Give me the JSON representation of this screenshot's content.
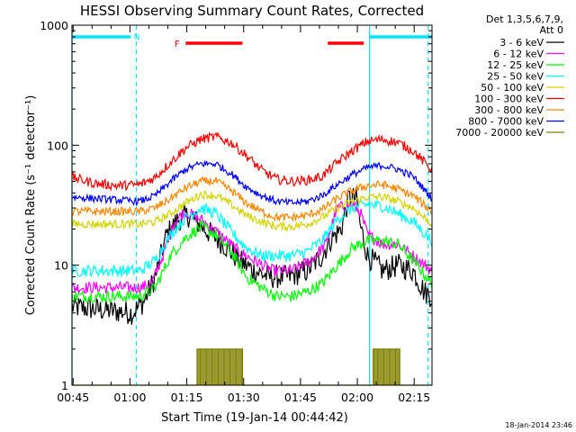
{
  "chart_data": {
    "type": "line",
    "title": "HESSI Observing Summary Count Rates, Corrected",
    "xlabel": "Start Time (19-Jan-14 00:44:42)",
    "ylabel": "Corrected Count Rate (s⁻¹ detector⁻¹)",
    "x_unit": "minutes after 00:44:42",
    "xlim": [
      0,
      95
    ],
    "ylim": [
      1,
      1000
    ],
    "yscale": "log",
    "x_ticks": [
      {
        "at": 0.3,
        "label": "00:45"
      },
      {
        "at": 15.3,
        "label": "01:00"
      },
      {
        "at": 30.3,
        "label": "01:15"
      },
      {
        "at": 45.3,
        "label": "01:30"
      },
      {
        "at": 60.3,
        "label": "01:45"
      },
      {
        "at": 75.3,
        "label": "02:00"
      },
      {
        "at": 90.3,
        "label": "02:15"
      }
    ],
    "y_ticks": [
      {
        "at": 1,
        "label": "1"
      },
      {
        "at": 10,
        "label": "10"
      },
      {
        "at": 100,
        "label": "100"
      },
      {
        "at": 1000,
        "label": "1000"
      }
    ],
    "legend_header": [
      "Det 1,3,5,6,7,9,",
      "Att 0"
    ],
    "legend_position": "right",
    "series": [
      {
        "name": "3 - 6 keV",
        "color": "#000000",
        "noise": 0.1,
        "points": [
          [
            0,
            4.5
          ],
          [
            16,
            4
          ],
          [
            19,
            5
          ],
          [
            22,
            8
          ],
          [
            25,
            18
          ],
          [
            28,
            24
          ],
          [
            31,
            26
          ],
          [
            35,
            20
          ],
          [
            40,
            15
          ],
          [
            44,
            11
          ],
          [
            48,
            9
          ],
          [
            52,
            8
          ],
          [
            57,
            8
          ],
          [
            62,
            9
          ],
          [
            66,
            12
          ],
          [
            68,
            16
          ],
          [
            71,
            20
          ],
          [
            73,
            36
          ],
          [
            75,
            36
          ],
          [
            76,
            22
          ],
          [
            78,
            12
          ],
          [
            82,
            9
          ],
          [
            86,
            10
          ],
          [
            90,
            9
          ],
          [
            93,
            6
          ],
          [
            95,
            5.5
          ]
        ]
      },
      {
        "name": "6 - 12 keV",
        "color": "#ff00ff",
        "noise": 0.05,
        "points": [
          [
            0,
            6.5
          ],
          [
            18,
            6.5
          ],
          [
            21,
            7
          ],
          [
            24,
            12
          ],
          [
            27,
            23
          ],
          [
            30,
            28
          ],
          [
            34,
            24
          ],
          [
            39,
            18
          ],
          [
            44,
            13
          ],
          [
            48,
            11
          ],
          [
            53,
            9
          ],
          [
            58,
            9
          ],
          [
            63,
            11
          ],
          [
            67,
            15
          ],
          [
            70,
            30
          ],
          [
            74,
            32
          ],
          [
            76,
            28
          ],
          [
            78,
            18
          ],
          [
            82,
            15
          ],
          [
            86,
            15
          ],
          [
            90,
            12
          ],
          [
            95,
            9
          ]
        ]
      },
      {
        "name": "12 - 25 keV",
        "color": "#00ff00",
        "noise": 0.05,
        "points": [
          [
            0,
            5.5
          ],
          [
            18,
            5.5
          ],
          [
            22,
            6.5
          ],
          [
            26,
            12
          ],
          [
            30,
            17
          ],
          [
            34,
            21
          ],
          [
            38,
            18
          ],
          [
            42,
            13
          ],
          [
            46,
            8
          ],
          [
            50,
            6.5
          ],
          [
            54,
            5.5
          ],
          [
            58,
            5.5
          ],
          [
            62,
            6
          ],
          [
            66,
            7
          ],
          [
            70,
            10
          ],
          [
            74,
            14
          ],
          [
            78,
            16
          ],
          [
            82,
            16
          ],
          [
            86,
            15
          ],
          [
            90,
            11
          ],
          [
            95,
            7
          ]
        ]
      },
      {
        "name": "25 - 50 keV",
        "color": "#00ffff",
        "noise": 0.05,
        "points": [
          [
            0,
            9
          ],
          [
            18,
            9
          ],
          [
            22,
            11
          ],
          [
            26,
            18
          ],
          [
            30,
            25
          ],
          [
            34,
            30
          ],
          [
            38,
            27
          ],
          [
            42,
            19
          ],
          [
            46,
            14
          ],
          [
            50,
            12
          ],
          [
            54,
            12
          ],
          [
            58,
            12
          ],
          [
            62,
            13
          ],
          [
            66,
            16
          ],
          [
            70,
            24
          ],
          [
            74,
            30
          ],
          [
            78,
            32
          ],
          [
            82,
            31
          ],
          [
            86,
            27
          ],
          [
            90,
            23
          ],
          [
            95,
            16
          ]
        ]
      },
      {
        "name": "50 - 100 keV",
        "color": "#d4d400",
        "noise": 0.035,
        "points": [
          [
            0,
            22
          ],
          [
            18,
            22
          ],
          [
            22,
            23
          ],
          [
            26,
            27
          ],
          [
            30,
            33
          ],
          [
            34,
            39
          ],
          [
            38,
            38
          ],
          [
            42,
            32
          ],
          [
            46,
            26
          ],
          [
            50,
            23
          ],
          [
            54,
            21
          ],
          [
            58,
            21
          ],
          [
            62,
            22
          ],
          [
            66,
            25
          ],
          [
            70,
            30
          ],
          [
            74,
            34
          ],
          [
            78,
            37
          ],
          [
            82,
            37
          ],
          [
            86,
            34
          ],
          [
            90,
            30
          ],
          [
            95,
            22
          ]
        ]
      },
      {
        "name": "100 - 300 keV",
        "color": "#ff0000",
        "noise": 0.04,
        "points": [
          [
            0,
            54
          ],
          [
            6,
            48
          ],
          [
            12,
            46
          ],
          [
            18,
            47
          ],
          [
            22,
            54
          ],
          [
            26,
            72
          ],
          [
            30,
            95
          ],
          [
            34,
            112
          ],
          [
            38,
            118
          ],
          [
            42,
            105
          ],
          [
            46,
            82
          ],
          [
            50,
            62
          ],
          [
            54,
            52
          ],
          [
            58,
            50
          ],
          [
            62,
            51
          ],
          [
            66,
            55
          ],
          [
            70,
            72
          ],
          [
            74,
            90
          ],
          [
            78,
            108
          ],
          [
            82,
            112
          ],
          [
            86,
            105
          ],
          [
            90,
            90
          ],
          [
            95,
            62
          ]
        ]
      },
      {
        "name": "300 - 800 keV",
        "color": "#ff8800",
        "noise": 0.035,
        "points": [
          [
            0,
            28
          ],
          [
            18,
            28
          ],
          [
            22,
            30
          ],
          [
            26,
            36
          ],
          [
            30,
            44
          ],
          [
            34,
            50
          ],
          [
            38,
            50
          ],
          [
            42,
            42
          ],
          [
            46,
            33
          ],
          [
            50,
            28
          ],
          [
            54,
            25
          ],
          [
            58,
            25
          ],
          [
            62,
            26
          ],
          [
            66,
            29
          ],
          [
            70,
            36
          ],
          [
            74,
            42
          ],
          [
            78,
            46
          ],
          [
            82,
            47
          ],
          [
            86,
            43
          ],
          [
            90,
            38
          ],
          [
            95,
            28
          ]
        ]
      },
      {
        "name": "800 - 7000 keV",
        "color": "#0000ff",
        "noise": 0.03,
        "points": [
          [
            0,
            37
          ],
          [
            18,
            34
          ],
          [
            22,
            38
          ],
          [
            26,
            50
          ],
          [
            30,
            63
          ],
          [
            34,
            70
          ],
          [
            38,
            70
          ],
          [
            42,
            58
          ],
          [
            46,
            45
          ],
          [
            50,
            38
          ],
          [
            54,
            34
          ],
          [
            58,
            33
          ],
          [
            62,
            34
          ],
          [
            66,
            38
          ],
          [
            70,
            47
          ],
          [
            74,
            57
          ],
          [
            78,
            65
          ],
          [
            82,
            68
          ],
          [
            86,
            63
          ],
          [
            90,
            55
          ],
          [
            95,
            36
          ]
        ]
      },
      {
        "name": "7000 - 20000 keV",
        "color": "#808000",
        "noise": 0,
        "points": [
          [
            0,
            1
          ],
          [
            33,
            1
          ],
          [
            33,
            2
          ],
          [
            45,
            2
          ],
          [
            45,
            1
          ],
          [
            79.5,
            1
          ],
          [
            79.5,
            2
          ],
          [
            86.5,
            2
          ],
          [
            86.5,
            1
          ],
          [
            95,
            1
          ]
        ]
      }
    ],
    "annotations": {
      "nighttime_bars": {
        "color": "#00e5ff",
        "segments": [
          [
            0,
            15.5
          ],
          [
            78.5,
            95
          ]
        ],
        "label": "N",
        "label_at": 17.0
      },
      "flare_bars": {
        "color": "#ff0000",
        "segments": [
          [
            30,
            45
          ],
          [
            67.5,
            77
          ]
        ],
        "label": "F",
        "label_at": 28.0
      },
      "vertical_lines": [
        {
          "at": 0.0,
          "style": "solid",
          "color": "#00e5ff"
        },
        {
          "at": 17.0,
          "style": "dashed",
          "color": "#00e5ff"
        },
        {
          "at": 78.5,
          "style": "solid",
          "color": "#00e5ff"
        },
        {
          "at": 94.0,
          "style": "dashed",
          "color": "#00e5ff"
        }
      ]
    }
  },
  "footer": {
    "timestamp": "18-Jan-2014 23:46"
  }
}
